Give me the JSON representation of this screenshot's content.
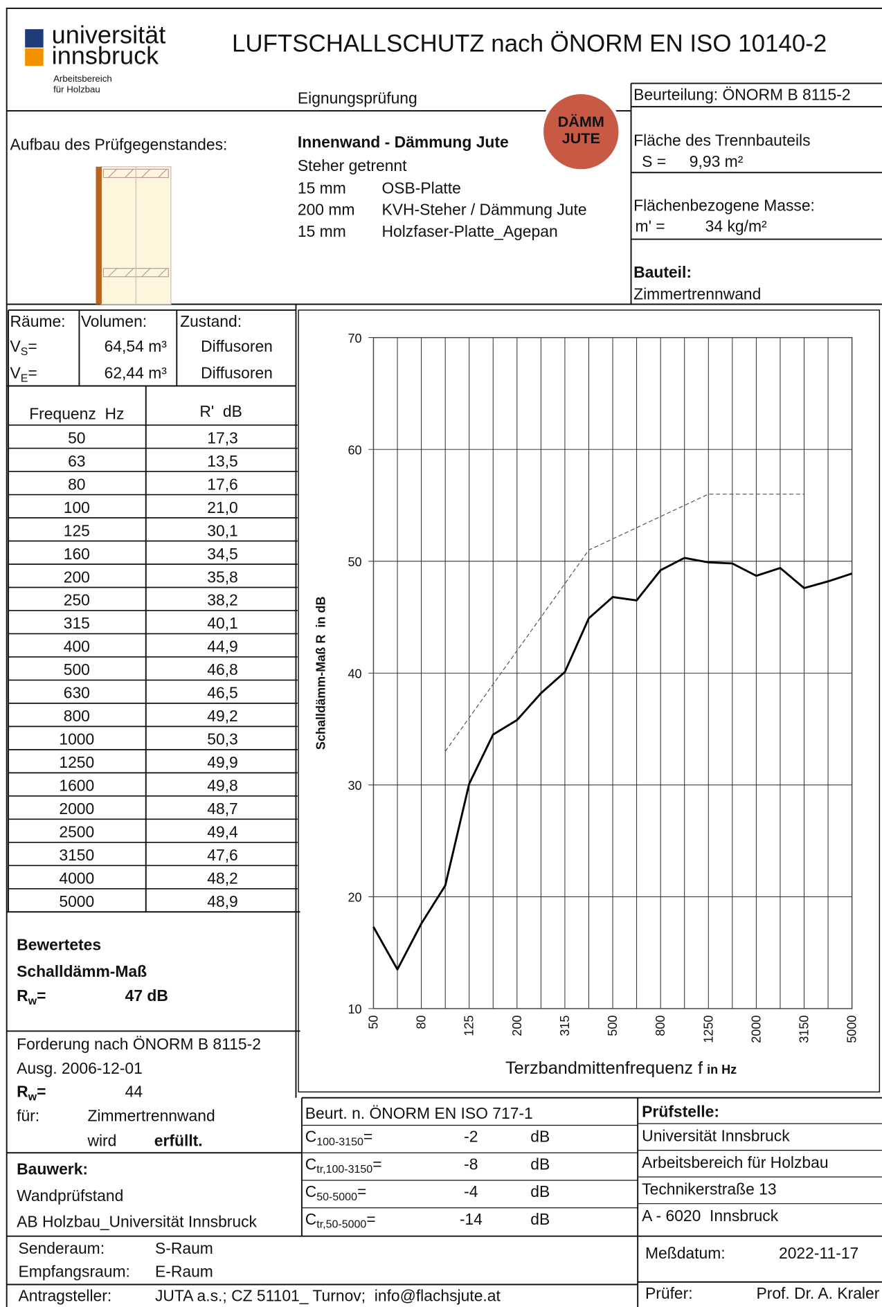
{
  "header": {
    "logo": [
      "universität",
      "innsbruck"
    ],
    "logo_sub": [
      "Arbeitsbereich",
      "für Holzbau"
    ],
    "title": "LUFTSCHALLSCHUTZ nach ÖNORM EN ISO 10140-2",
    "test_type": "Eignungsprüfung",
    "assessment": "Beurteilung: ÖNORM B 8115-2"
  },
  "badge": [
    "DÄMM",
    "JUTE"
  ],
  "specimen": {
    "label": "Aufbau des Prüfgegenstandes:",
    "name": "Innenwand - Dämmung Jute",
    "note": "Steher getrennt",
    "layers": [
      [
        "15 mm",
        "OSB-Platte"
      ],
      [
        "200 mm",
        "KVH-Steher / Dämmung Jute"
      ],
      [
        "15 mm",
        "Holzfaser-Platte_Agepan"
      ]
    ]
  },
  "area": {
    "label": "Fläche des Trennbauteils",
    "symbol": "S =",
    "value": "9,93 m²"
  },
  "mass": {
    "label": "Flächenbezogene Masse:",
    "symbol": "m' =",
    "value": "34 kg/m²"
  },
  "component": {
    "label": "Bauteil:",
    "value": "Zimmertrennwand"
  },
  "rooms": {
    "headers": [
      "Räume:",
      "Volumen:",
      "Zustand:"
    ],
    "rows": [
      {
        "symbol": "V",
        "sub": "S",
        "eq": "=",
        "volume": "64,54 m³",
        "state": "Diffusoren"
      },
      {
        "symbol": "V",
        "sub": "E",
        "eq": "=",
        "volume": "62,44 m³",
        "state": "Diffusoren"
      }
    ]
  },
  "table": {
    "headers": [
      "Frequenz  Hz",
      "R'  dB"
    ],
    "rows": [
      [
        "50",
        "17,3"
      ],
      [
        "63",
        "13,5"
      ],
      [
        "80",
        "17,6"
      ],
      [
        "100",
        "21,0"
      ],
      [
        "125",
        "30,1"
      ],
      [
        "160",
        "34,5"
      ],
      [
        "200",
        "35,8"
      ],
      [
        "250",
        "38,2"
      ],
      [
        "315",
        "40,1"
      ],
      [
        "400",
        "44,9"
      ],
      [
        "500",
        "46,8"
      ],
      [
        "630",
        "46,5"
      ],
      [
        "800",
        "49,2"
      ],
      [
        "1000",
        "50,3"
      ],
      [
        "1250",
        "49,9"
      ],
      [
        "1600",
        "49,8"
      ],
      [
        "2000",
        "48,7"
      ],
      [
        "2500",
        "49,4"
      ],
      [
        "3150",
        "47,6"
      ],
      [
        "4000",
        "48,2"
      ],
      [
        "5000",
        "48,9"
      ]
    ]
  },
  "rating": {
    "lines": [
      "Bewertetes",
      "Schalldämm-Maß"
    ],
    "symbol": "R",
    "sub": "w",
    "eq": "=",
    "value": "47 dB"
  },
  "requirement": {
    "lines": [
      "Forderung nach ÖNORM B 8115-2",
      "Ausg. 2006-12-01"
    ],
    "symbol": "R",
    "sub": "w",
    "eq": "=",
    "value": "44",
    "for_label": "für:",
    "for_value": "Zimmertrennwand",
    "verb": "wird",
    "result": "erfüllt."
  },
  "building": {
    "label": "Bauwerk:",
    "lines": [
      "Wandprüfstand",
      "AB Holzbau_Universität Innsbruck"
    ]
  },
  "spectrum": {
    "title": "Beurt. n. ÖNORM EN ISO 717-1",
    "rows": [
      {
        "symbol": "C",
        "sub": "100-3150",
        "eq": "=",
        "value": "-2",
        "unit": "dB"
      },
      {
        "symbol": "C",
        "sub": "tr,100-3150",
        "eq": "=",
        "value": "-8",
        "unit": "dB"
      },
      {
        "symbol": "C",
        "sub": "50-5000",
        "eq": "=",
        "value": "-4",
        "unit": "dB"
      },
      {
        "symbol": "C",
        "sub": "tr,50-5000",
        "eq": "=",
        "value": "-14",
        "unit": "dB"
      }
    ]
  },
  "lab": {
    "label": "Prüfstelle:",
    "lines": [
      "Universität Innsbruck",
      "Arbeitsbereich für Holzbau",
      "Technikerstraße 13",
      "A - 6020  Innsbruck"
    ]
  },
  "footer": {
    "sender": [
      "Senderaum:",
      "S-Raum"
    ],
    "receiver": [
      "Empfangsraum:",
      "E-Raum"
    ],
    "applicant": [
      "Antragsteller:",
      "JUTA a.s.; CZ 51101_ Turnov;  info@flachsjute.at"
    ],
    "date": [
      "Meßdatum:",
      "2022-11-17"
    ],
    "examiner": [
      "Prüfer:",
      "Prof. Dr. A. Kraler"
    ]
  },
  "chart_data": {
    "type": "line",
    "ylabel": "Schalldämm-Maß R  in dB",
    "xlabel": "Terzbandmittenfrequenz f",
    "xlabel_unit": "in Hz",
    "categories": [
      50,
      null,
      80,
      null,
      125,
      null,
      200,
      null,
      315,
      null,
      500,
      null,
      800,
      null,
      1250,
      null,
      2000,
      null,
      3150,
      null,
      5000
    ],
    "ylim": [
      10,
      70
    ],
    "yticks": [
      10,
      20,
      30,
      40,
      50,
      60,
      70
    ],
    "grid": true,
    "series": [
      {
        "color": "#000000",
        "style": "solid",
        "values": [
          17.3,
          13.5,
          17.6,
          21.0,
          30.1,
          34.5,
          35.8,
          38.2,
          40.1,
          44.9,
          46.8,
          46.5,
          49.2,
          50.3,
          49.9,
          49.8,
          48.7,
          49.4,
          47.6,
          48.2,
          48.9
        ]
      },
      {
        "color": "#555555",
        "style": "dashed",
        "values": [
          null,
          null,
          null,
          33,
          36,
          39,
          42,
          45,
          48,
          51,
          52,
          53,
          54,
          55,
          56,
          56,
          56,
          56,
          56,
          null,
          null
        ]
      }
    ]
  }
}
